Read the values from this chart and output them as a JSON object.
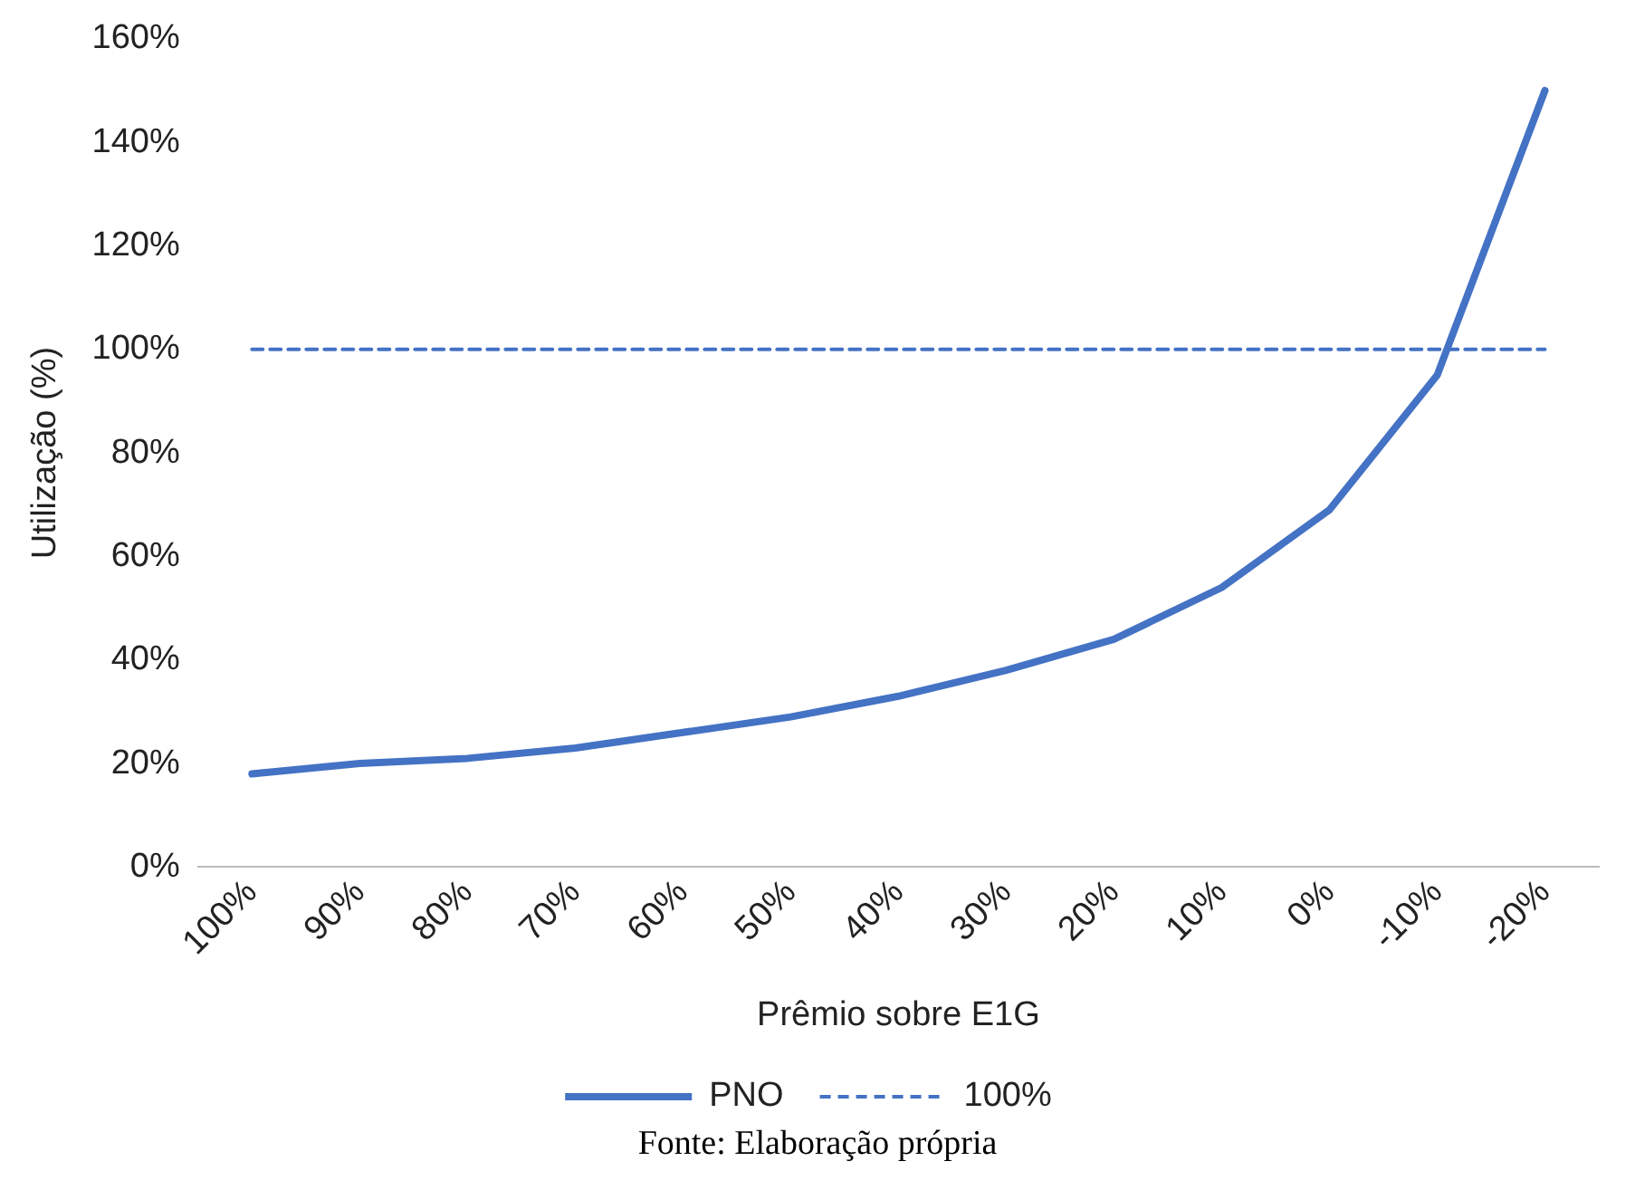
{
  "chart_data": {
    "type": "line",
    "xlabel": "Prêmio sobre E1G",
    "ylabel": "Utilização (%)",
    "categories": [
      "100%",
      "90%",
      "80%",
      "70%",
      "60%",
      "50%",
      "40%",
      "30%",
      "20%",
      "10%",
      "0%",
      "-10%",
      "-20%"
    ],
    "series": [
      {
        "name": "PNO",
        "color": "#4472c4",
        "line_style": "solid",
        "values": [
          18,
          20,
          21,
          23,
          26,
          29,
          33,
          38,
          44,
          54,
          69,
          95,
          150
        ]
      },
      {
        "name": "100%",
        "color": "#4472c4",
        "line_style": "dashed",
        "values": [
          100,
          100,
          100,
          100,
          100,
          100,
          100,
          100,
          100,
          100,
          100,
          100,
          100
        ]
      }
    ],
    "ylim": [
      0,
      160
    ],
    "yticks": [
      {
        "value": 0,
        "label": "0%"
      },
      {
        "value": 20,
        "label": "20%"
      },
      {
        "value": 40,
        "label": "40%"
      },
      {
        "value": 60,
        "label": "60%"
      },
      {
        "value": 80,
        "label": "80%"
      },
      {
        "value": 100,
        "label": "100%"
      },
      {
        "value": 120,
        "label": "120%"
      },
      {
        "value": 140,
        "label": "140%"
      },
      {
        "value": 160,
        "label": "160%"
      }
    ],
    "grid": false,
    "legend": "bottom",
    "marker": "none",
    "annotations": [
      "Fonte: Elaboração própria"
    ]
  }
}
